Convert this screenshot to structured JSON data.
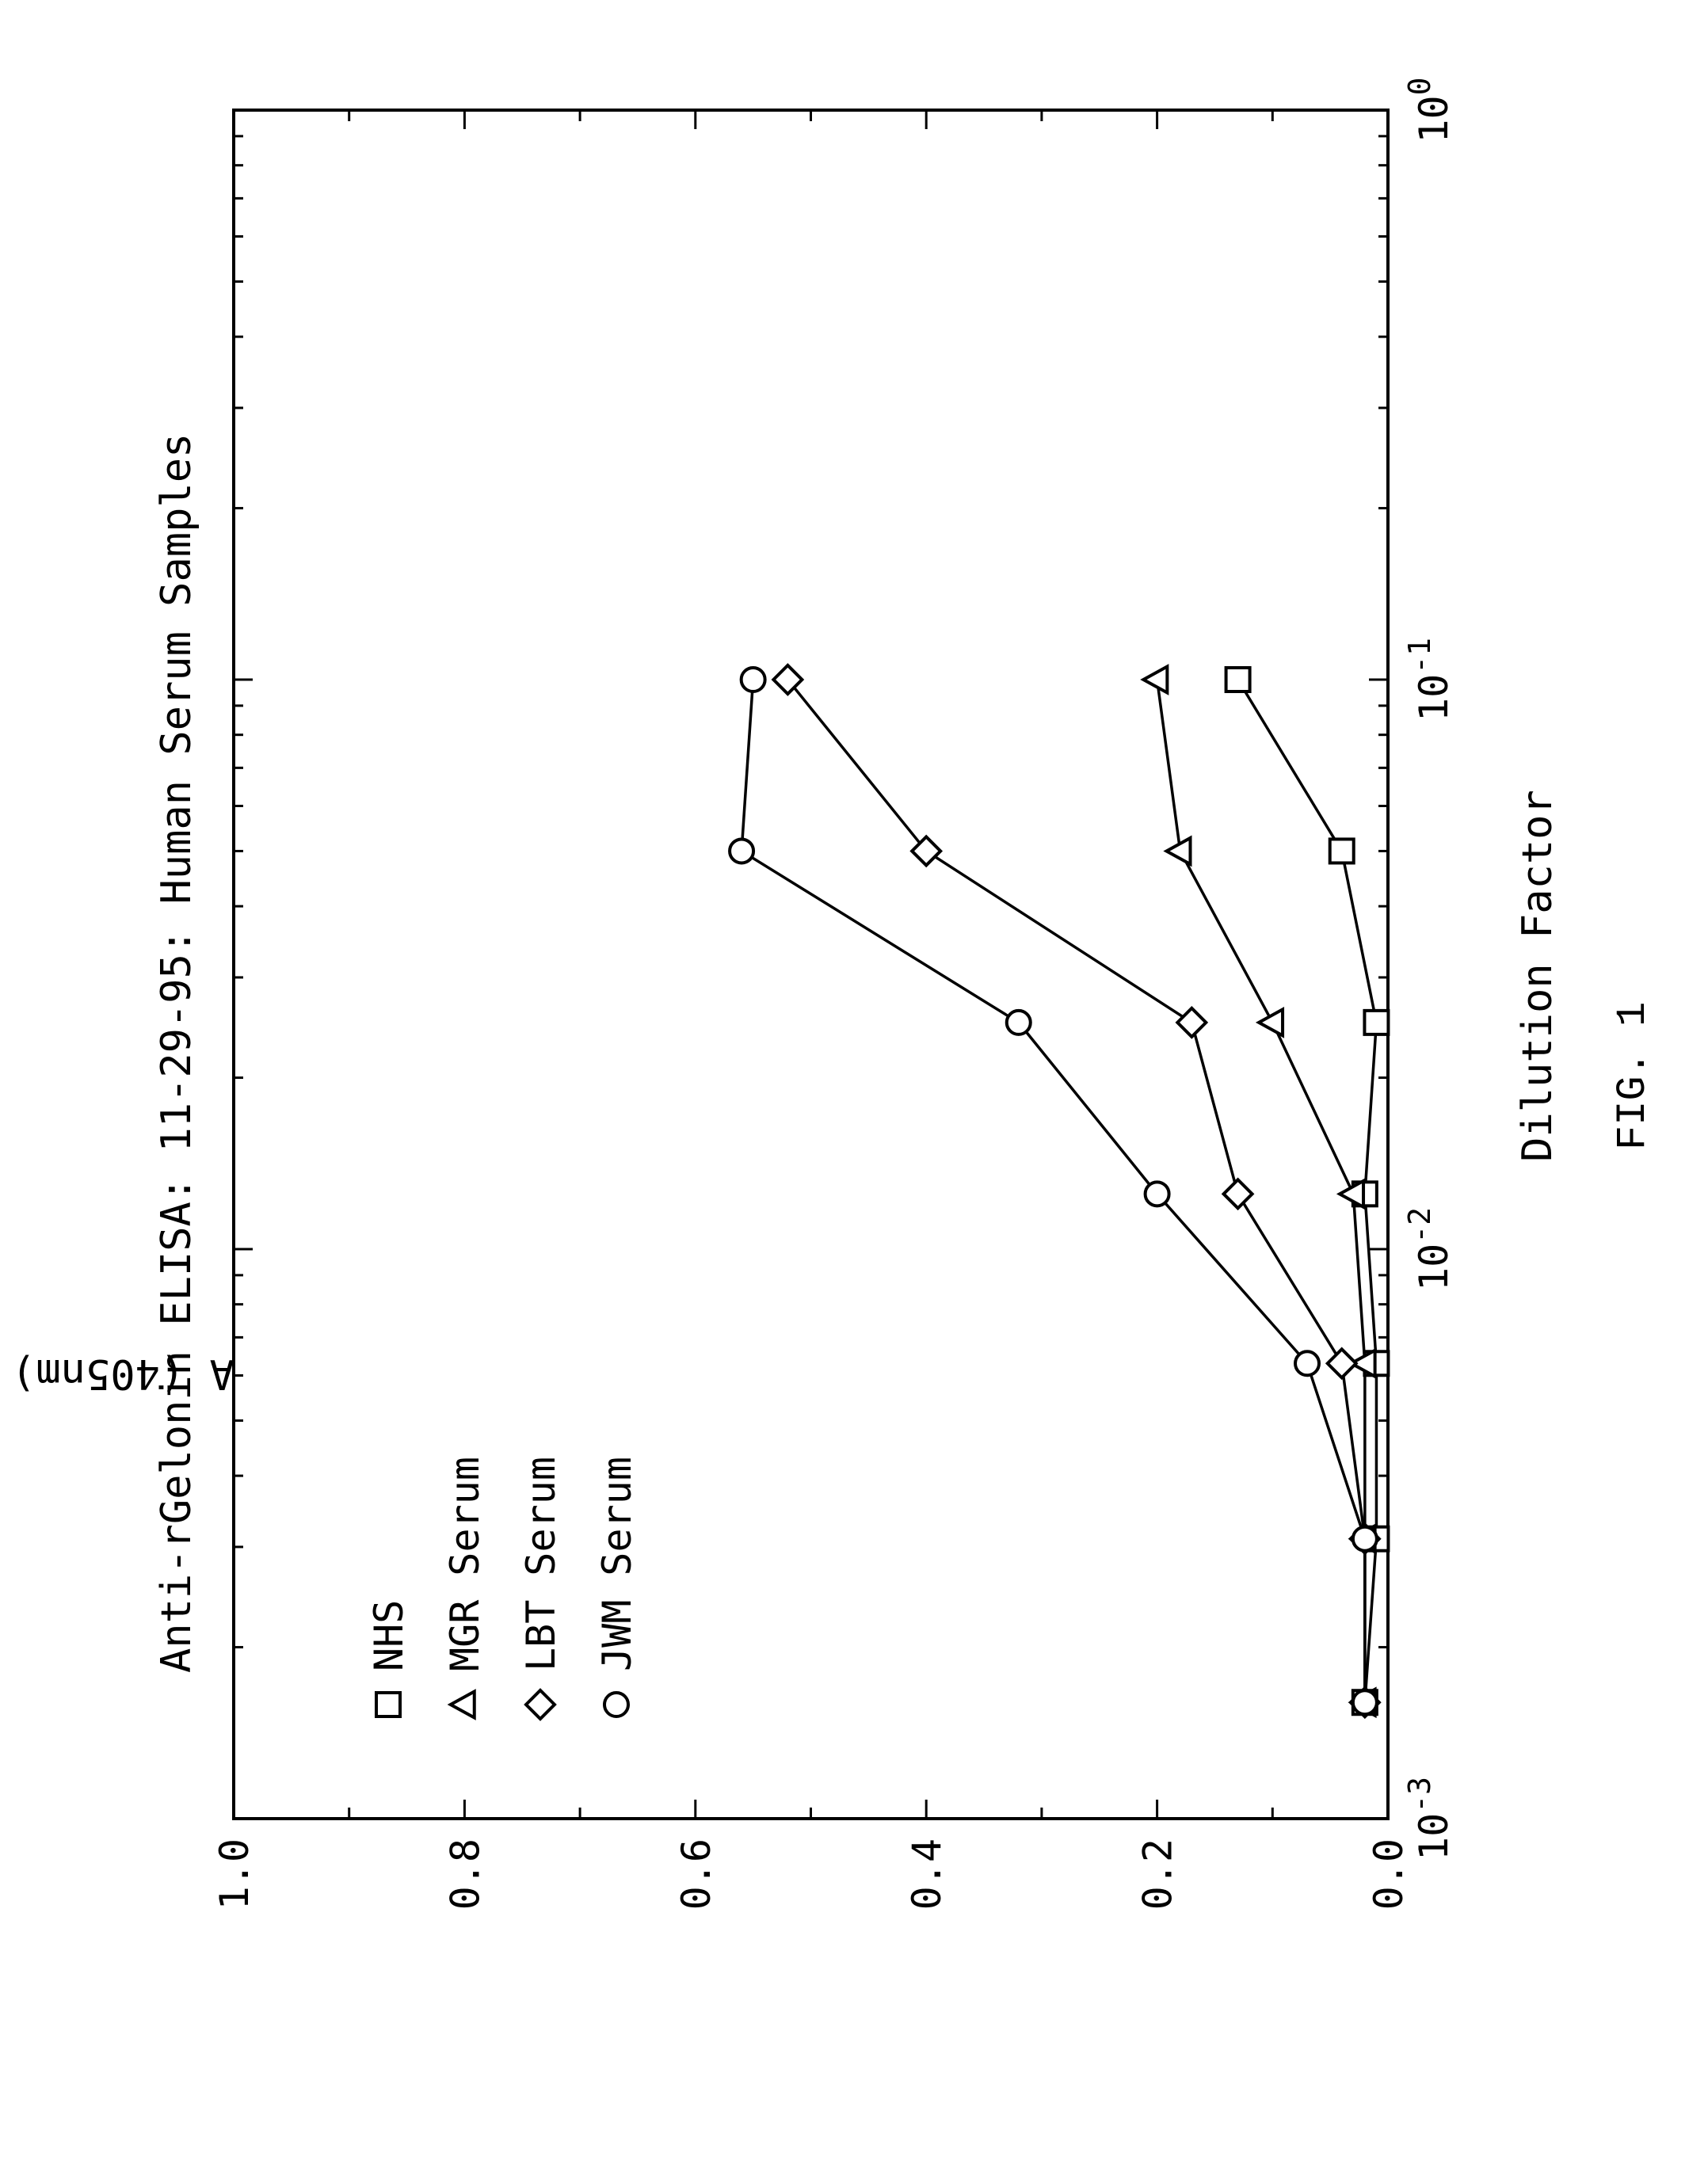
{
  "chart_data": {
    "type": "line",
    "title": "Anti-rGelonin ELISA: 11-29-95: Human Serum Samples",
    "xlabel": "Dilution Factor",
    "ylabel": "A (405nm)",
    "x_scale": "log",
    "xlim": [
      0.001,
      1
    ],
    "ylim": [
      0.0,
      1.0
    ],
    "x_ticks": [
      {
        "value": 0.001,
        "base": "10",
        "exp": "-3"
      },
      {
        "value": 0.01,
        "base": "10",
        "exp": "-2"
      },
      {
        "value": 0.1,
        "base": "10",
        "exp": "-1"
      },
      {
        "value": 1,
        "base": "10",
        "exp": "0"
      }
    ],
    "y_ticks": [
      "0.0",
      "0.2",
      "0.4",
      "0.6",
      "0.8",
      "1.0"
    ],
    "legend_position": "upper-left",
    "grid": false,
    "rotated": true,
    "series": [
      {
        "name": "NHS",
        "marker": "square",
        "x": [
          0.0016,
          0.0031,
          0.0063,
          0.0125,
          0.025,
          0.05,
          0.1
        ],
        "y": [
          0.02,
          0.01,
          0.01,
          0.02,
          0.01,
          0.04,
          0.13
        ]
      },
      {
        "name": "MGR Serum",
        "marker": "triangle",
        "x": [
          0.0016,
          0.0031,
          0.0063,
          0.0125,
          0.025,
          0.05,
          0.1
        ],
        "y": [
          0.02,
          0.02,
          0.02,
          0.03,
          0.1,
          0.18,
          0.2
        ]
      },
      {
        "name": "LBT Serum",
        "marker": "diamond",
        "x": [
          0.0016,
          0.0031,
          0.0063,
          0.0125,
          0.025,
          0.05,
          0.1
        ],
        "y": [
          0.02,
          0.02,
          0.04,
          0.13,
          0.17,
          0.4,
          0.52
        ]
      },
      {
        "name": "JWM Serum",
        "marker": "circle",
        "x": [
          0.0016,
          0.0031,
          0.0063,
          0.0125,
          0.025,
          0.05,
          0.1
        ],
        "y": [
          0.02,
          0.02,
          0.07,
          0.2,
          0.32,
          0.56,
          0.55
        ]
      }
    ]
  },
  "caption": "FIG. 1"
}
